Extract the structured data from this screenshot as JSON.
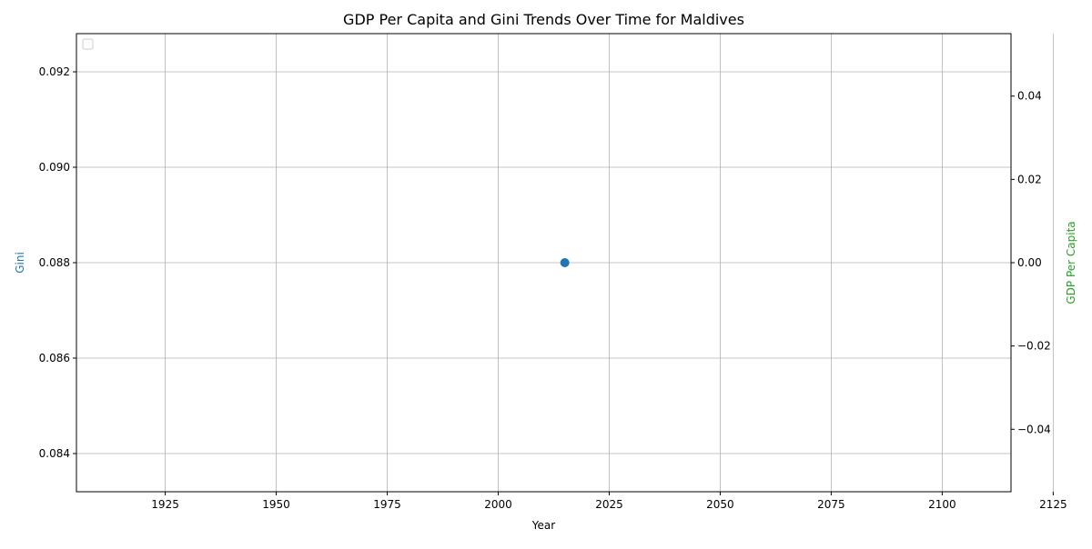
{
  "chart_data": {
    "type": "scatter",
    "title": "GDP Per Capita and Gini Trends Over Time for Maldives",
    "xlabel": "Year",
    "ylabel_left": "Gini",
    "ylabel_right": "GDP Per Capita",
    "xlim": [
      1905,
      2115.5
    ],
    "ylim_left": [
      0.0832,
      0.0928
    ],
    "ylim_right": [
      -0.055,
      0.055
    ],
    "x_ticks": [
      1925,
      1950,
      1975,
      2000,
      2025,
      2050,
      2075,
      2100,
      2125
    ],
    "y_ticks_left": [
      0.084,
      0.086,
      0.088,
      0.09,
      0.092
    ],
    "y_ticks_left_labels": [
      "0.084",
      "0.086",
      "0.088",
      "0.090",
      "0.092"
    ],
    "y_ticks_right": [
      -0.04,
      -0.02,
      0.0,
      0.02,
      0.04
    ],
    "y_ticks_right_labels": [
      "−0.04",
      "−0.02",
      "0.00",
      "0.02",
      "0.04"
    ],
    "series": [
      {
        "axis": "left",
        "x": [
          2015
        ],
        "y": [
          0.088
        ]
      }
    ],
    "grid": true,
    "legend": {
      "placement": "upper-left",
      "entries": []
    },
    "colors": {
      "gini": "#1f77b4",
      "gdp": "#2ca02c",
      "grid": "#b0b0b0",
      "axis": "#000000"
    }
  }
}
